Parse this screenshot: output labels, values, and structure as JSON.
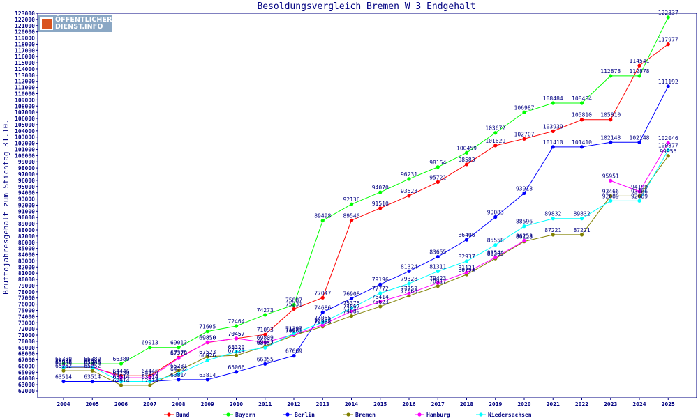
{
  "chart_data": {
    "type": "line",
    "title": "Besoldungsvergleich Bremen W 3 Endgehalt",
    "xlabel": "",
    "ylabel": "Bruttojahresgehalt zum Stichtag 31.10.",
    "categories": [
      "2004",
      "2005",
      "2006",
      "2007",
      "2008",
      "2009",
      "2010",
      "2011",
      "2012",
      "2013",
      "2014",
      "2015",
      "2016",
      "2017",
      "2018",
      "2019",
      "2020",
      "2021",
      "2022",
      "2023",
      "2024",
      "2025"
    ],
    "ylim": [
      62000,
      123000
    ],
    "ytick_step": 1000,
    "grid": false,
    "legend_position": "bottom",
    "series": [
      {
        "name": "Bund",
        "color": "#ff0000",
        "values": [
          65766,
          65766,
          64446,
          64446,
          67379,
          69810,
          70457,
          71093,
          75231,
          77047,
          89540,
          91510,
          93523,
          95721,
          98583,
          101629,
          102707,
          103939,
          105810,
          105810,
          114541,
          117977
        ]
      },
      {
        "name": "Bayern",
        "color": "#00ff00",
        "values": [
          66380,
          66380,
          66380,
          69013,
          69013,
          71605,
          72464,
          74273,
          75887,
          89498,
          92136,
          94070,
          96231,
          98154,
          100459,
          103672,
          106987,
          108484,
          108484,
          112878,
          112878,
          122337
        ]
      },
      {
        "name": "Berlin",
        "color": "#0000ff",
        "values": [
          63514,
          63514,
          63514,
          63514,
          63814,
          63814,
          65066,
          66355,
          67669,
          74686,
          76908,
          79196,
          81324,
          83655,
          86406,
          90083,
          93918,
          101410,
          101410,
          102148,
          102148,
          111192
        ]
      },
      {
        "name": "Bremen",
        "color": "#808000",
        "values": [
          65252,
          65252,
          62914,
          62914,
          65281,
          67523,
          67724,
          69173,
          70961,
          72388,
          74089,
          75623,
          77363,
          78917,
          80794,
          83363,
          86128,
          87221,
          87221,
          93466,
          93466,
          99956
        ]
      },
      {
        "name": "Hamburg",
        "color": "#ff00ff",
        "values": [
          65948,
          65948,
          64130,
          64130,
          67278,
          69850,
          70457,
          69809,
          71071,
          72652,
          74867,
          76414,
          77752,
          79423,
          81121,
          83544,
          86253,
          null,
          null,
          95951,
          94199,
          102046
        ]
      },
      {
        "name": "Niedersachsen",
        "color": "#00ffff",
        "values": [
          65830,
          65830,
          63514,
          63514,
          64762,
          66926,
          68320,
          68957,
          71297,
          73055,
          75375,
          77772,
          79328,
          81311,
          82937,
          85558,
          88596,
          89832,
          89832,
          92689,
          92689,
          100877
        ]
      }
    ]
  },
  "logo": {
    "line1": "ÖFFENTLICHER",
    "line2": "DIENST.INFO"
  }
}
